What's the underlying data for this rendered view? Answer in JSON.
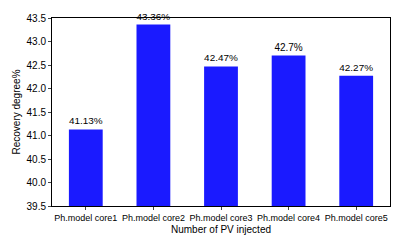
{
  "chart_data": {
    "type": "bar",
    "x_label": "Number of PV injected",
    "y_label": "Recovery degree%",
    "categories": [
      "Ph.model core1",
      "Ph.model core2",
      "Ph.model core3",
      "Ph.model core4",
      "Ph.model core5"
    ],
    "values": [
      41.13,
      43.36,
      42.47,
      42.7,
      42.27
    ],
    "value_labels": [
      "41.13%",
      "43.36%",
      "42.47%",
      "42.7%",
      "42.27%"
    ],
    "data_labels": true,
    "color": "#1a1aff",
    "ylim": [
      39.5,
      43.5
    ],
    "yticks": [
      39.5,
      {
        "value": 40,
        "label": "40.0"
      },
      40.5,
      {
        "value": 41,
        "label": "41.0"
      },
      41.5,
      {
        "value": 42,
        "label": "42.0"
      },
      42.5,
      {
        "value": 43,
        "label": "43.0"
      },
      43.5
    ],
    "grid": false
  }
}
